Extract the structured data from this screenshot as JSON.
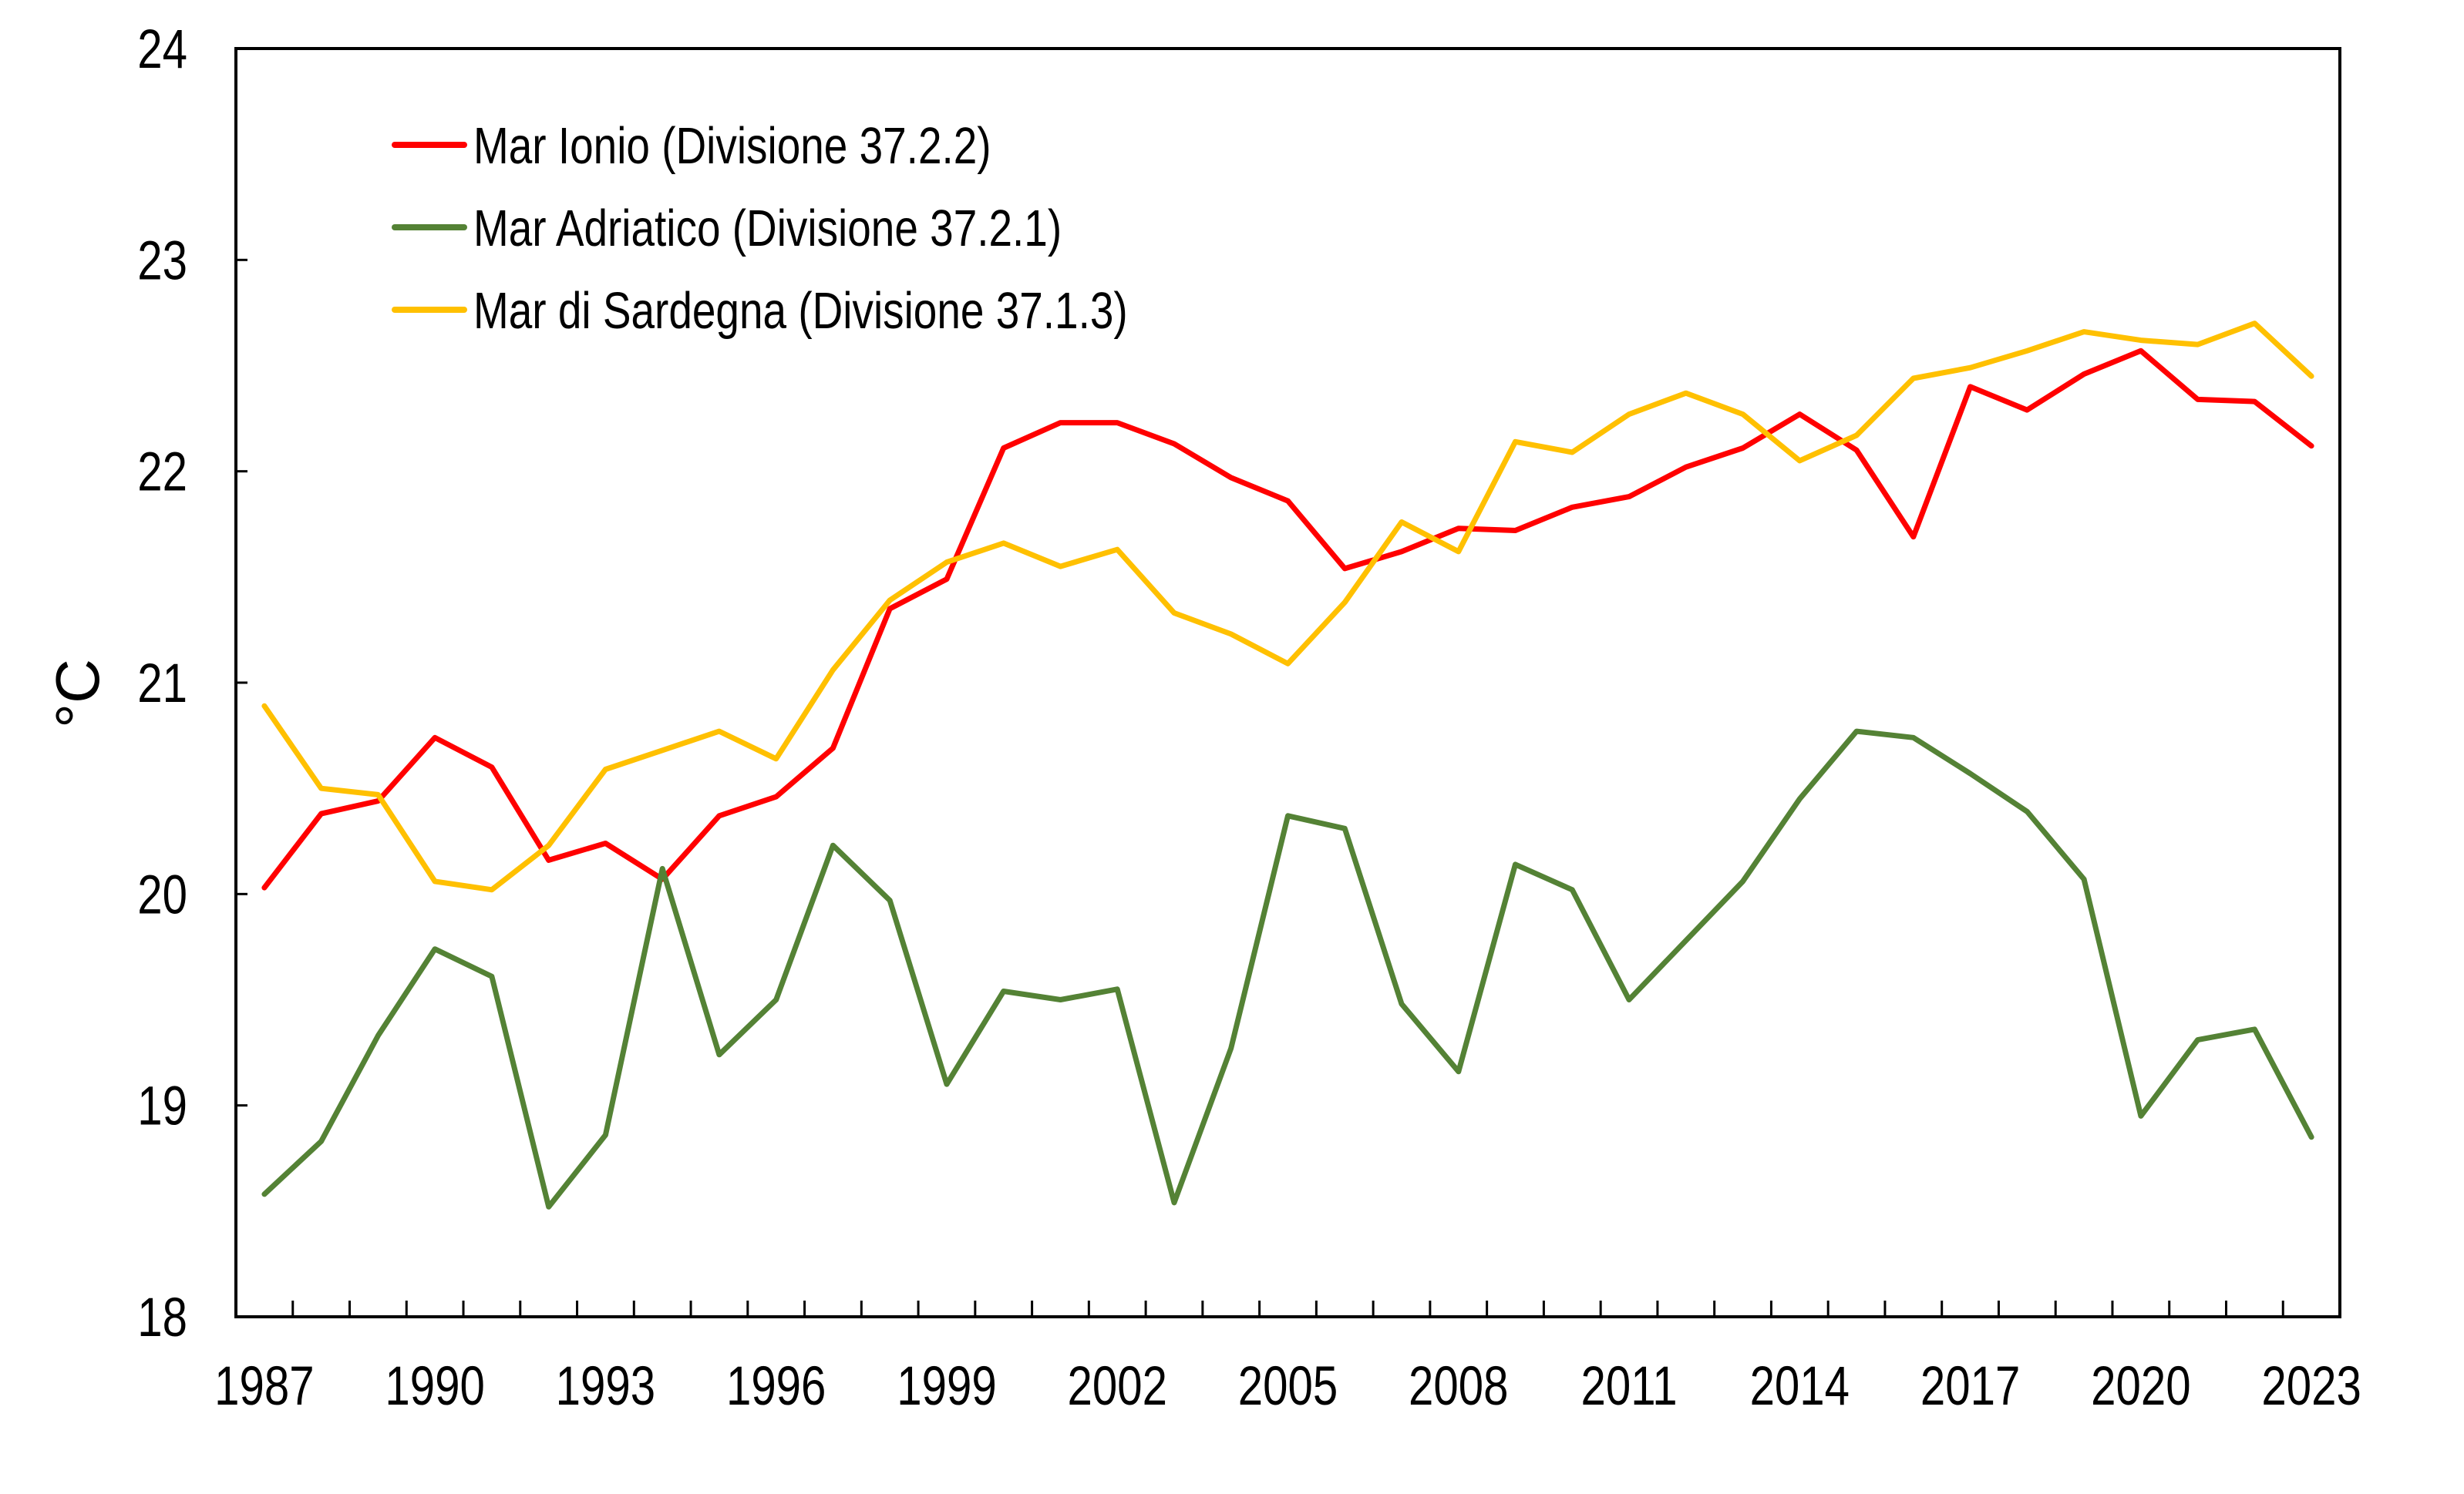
{
  "chart_data": {
    "type": "line",
    "title": "",
    "xlabel": "",
    "ylabel": "°C",
    "ylim": [
      18,
      24
    ],
    "yticks": [
      "18",
      "19",
      "20",
      "21",
      "22",
      "23",
      "24"
    ],
    "grid": false,
    "legend_position": "top-left",
    "categories": [
      1987,
      1988,
      1989,
      1990,
      1991,
      1992,
      1993,
      1994,
      1995,
      1996,
      1997,
      1998,
      1999,
      2000,
      2001,
      2002,
      2003,
      2004,
      2005,
      2006,
      2007,
      2008,
      2009,
      2010,
      2011,
      2012,
      2013,
      2014,
      2015,
      2016,
      2017,
      2018,
      2019,
      2020,
      2021,
      2022,
      2023
    ],
    "xtick_labels": [
      "1987",
      "1990",
      "1993",
      "1996",
      "1999",
      "2002",
      "2005",
      "2008",
      "2011",
      "2014",
      "2017",
      "2020",
      "2023"
    ],
    "series": [
      {
        "name": "Mar Ionio (Divisione 37.2.2)",
        "color": "#ff0000",
        "values": [
          20.03,
          20.38,
          20.44,
          20.74,
          20.6,
          20.16,
          20.24,
          20.07,
          20.37,
          20.46,
          20.69,
          21.35,
          21.49,
          22.11,
          22.23,
          22.23,
          22.13,
          21.97,
          21.86,
          21.54,
          21.62,
          21.73,
          21.72,
          21.83,
          21.88,
          22.02,
          22.11,
          22.27,
          22.1,
          21.69,
          22.4,
          22.29,
          22.46,
          22.57,
          22.34,
          22.33,
          22.12
        ]
      },
      {
        "name": "Mar Adriatico (Divisione 37.2.1)",
        "color": "#548235",
        "values": [
          18.58,
          18.83,
          19.33,
          19.74,
          19.61,
          18.52,
          18.86,
          20.12,
          19.24,
          19.5,
          20.23,
          19.97,
          19.1,
          19.54,
          19.5,
          19.55,
          18.54,
          19.27,
          20.37,
          20.31,
          19.48,
          19.16,
          20.14,
          20.02,
          19.5,
          19.78,
          20.06,
          20.45,
          20.77,
          20.74,
          20.57,
          20.39,
          20.07,
          18.95,
          19.31,
          19.36,
          18.85
        ]
      },
      {
        "name": "Mar di Sardegna (Divisione 37.1.3)",
        "color": "#ffc000",
        "values": [
          20.89,
          20.5,
          20.47,
          20.06,
          20.02,
          20.23,
          20.59,
          20.68,
          20.77,
          20.64,
          21.06,
          21.39,
          21.57,
          21.66,
          21.55,
          21.63,
          21.33,
          21.23,
          21.09,
          21.38,
          21.76,
          21.62,
          22.14,
          22.09,
          22.27,
          22.37,
          22.27,
          22.05,
          22.17,
          22.44,
          22.49,
          22.57,
          22.66,
          22.62,
          22.6,
          22.7,
          22.45
        ]
      }
    ]
  }
}
